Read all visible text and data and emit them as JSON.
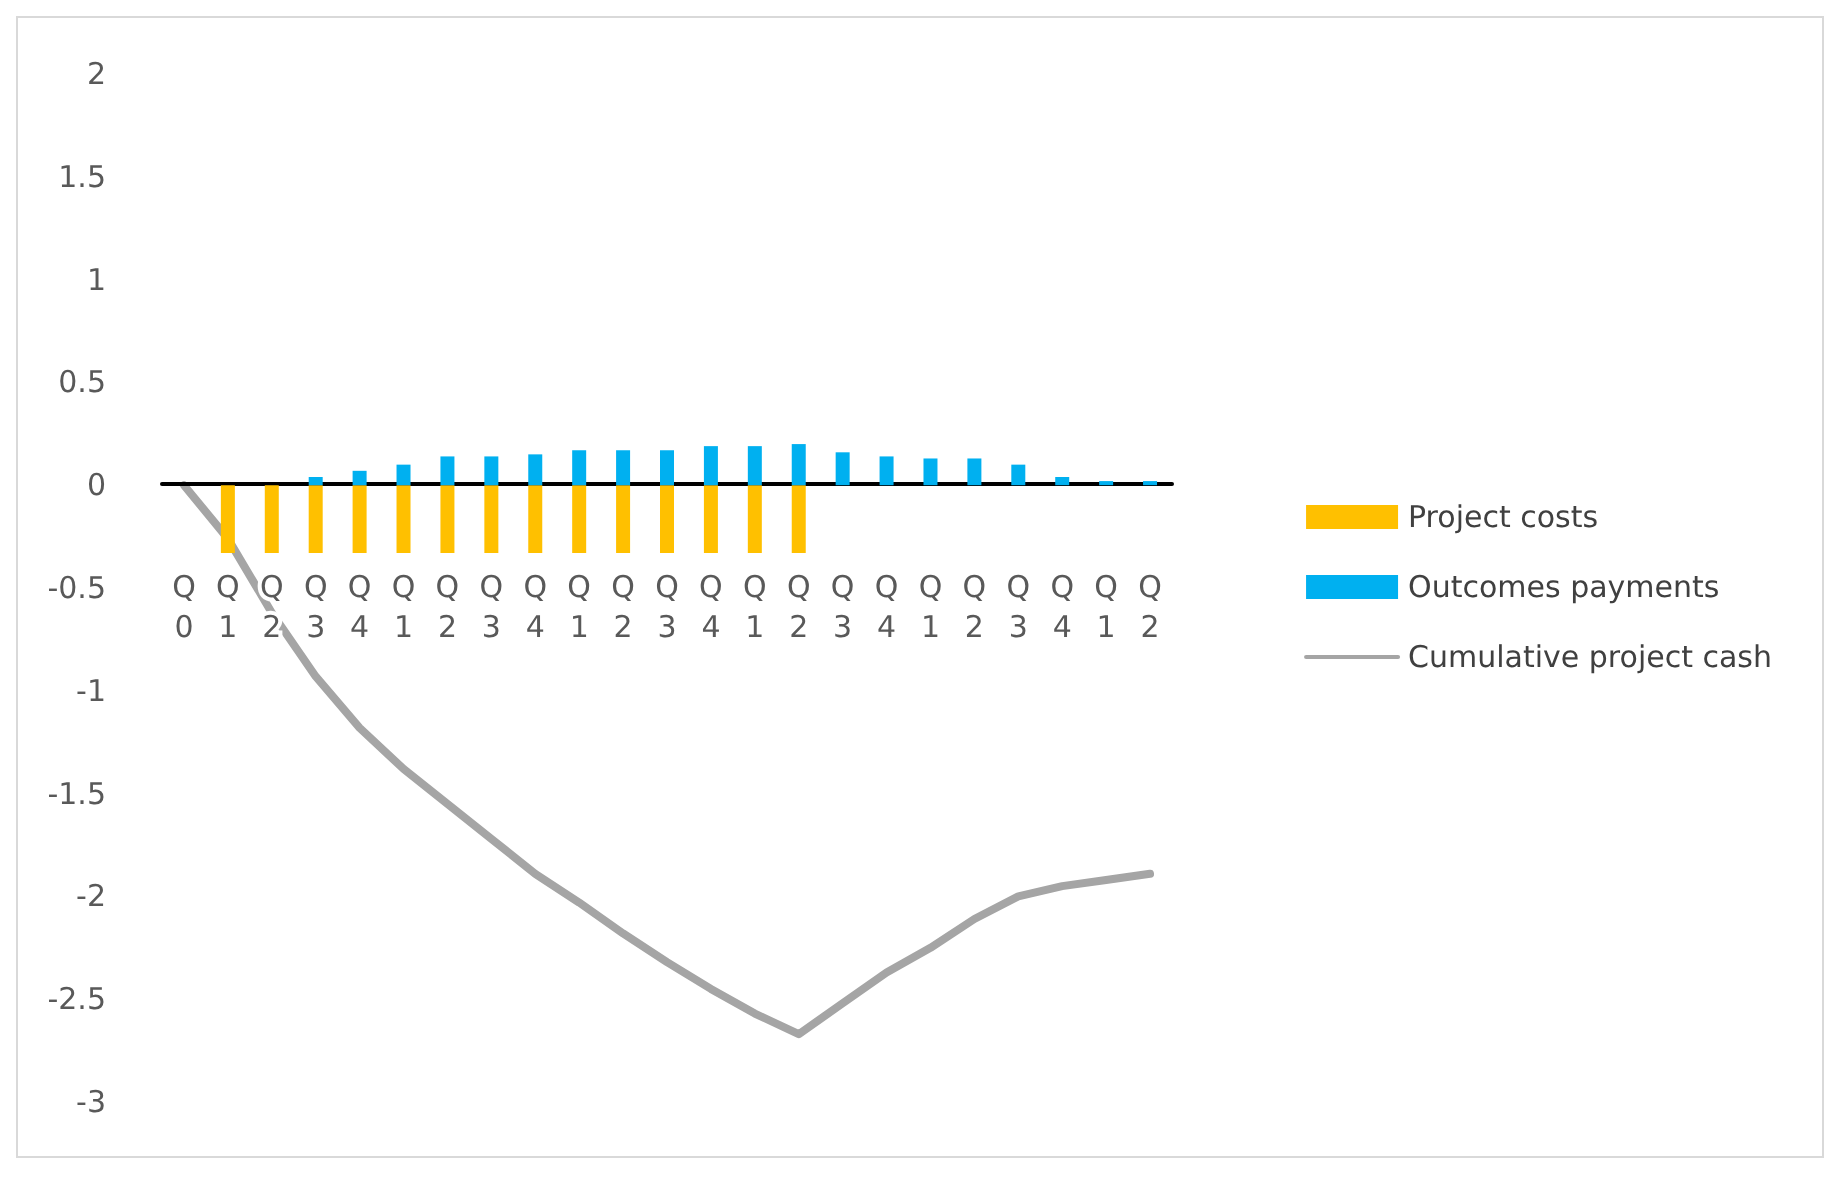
{
  "chart_data": {
    "type": "bar",
    "categories": [
      "Q0",
      "Q1",
      "Q2",
      "Q3",
      "Q4",
      "Q1",
      "Q2",
      "Q3",
      "Q4",
      "Q1",
      "Q2",
      "Q3",
      "Q4",
      "Q1",
      "Q2",
      "Q3",
      "Q4",
      "Q1",
      "Q2",
      "Q3",
      "Q4",
      "Q1",
      "Q2"
    ],
    "series": [
      {
        "name": "Project costs",
        "color": "#ffc000",
        "values": [
          null,
          -0.33,
          -0.33,
          -0.33,
          -0.33,
          -0.33,
          -0.33,
          -0.33,
          -0.33,
          -0.33,
          -0.33,
          -0.33,
          -0.33,
          -0.33,
          -0.33,
          null,
          null,
          null,
          null,
          null,
          null,
          null,
          null
        ]
      },
      {
        "name": "Outcomes payments",
        "color": "#00b0f0",
        "values": [
          null,
          null,
          null,
          0.04,
          0.07,
          0.1,
          0.14,
          0.14,
          0.15,
          0.17,
          0.17,
          0.17,
          0.19,
          0.19,
          0.2,
          0.16,
          0.14,
          0.13,
          0.13,
          0.1,
          0.04,
          0.02,
          0.02
        ]
      },
      {
        "name": "Cumulative project cash",
        "type": "line",
        "color": "#a5a5a5",
        "values": [
          0,
          -0.26,
          -0.62,
          -0.93,
          -1.18,
          -1.38,
          -1.55,
          -1.72,
          -1.89,
          -2.03,
          -2.18,
          -2.32,
          -2.45,
          -2.57,
          -2.67,
          -2.52,
          -2.37,
          -2.25,
          -2.11,
          -2.0,
          -1.95,
          -1.92,
          -1.89
        ]
      }
    ],
    "ylim": [
      -3,
      2
    ],
    "yticks": [
      -3,
      -2.5,
      -2,
      -1.5,
      -1,
      -0.5,
      0,
      0.5,
      1,
      1.5,
      2
    ],
    "stacked": true,
    "legend": "right",
    "marker": "none",
    "line_style": "solid"
  }
}
